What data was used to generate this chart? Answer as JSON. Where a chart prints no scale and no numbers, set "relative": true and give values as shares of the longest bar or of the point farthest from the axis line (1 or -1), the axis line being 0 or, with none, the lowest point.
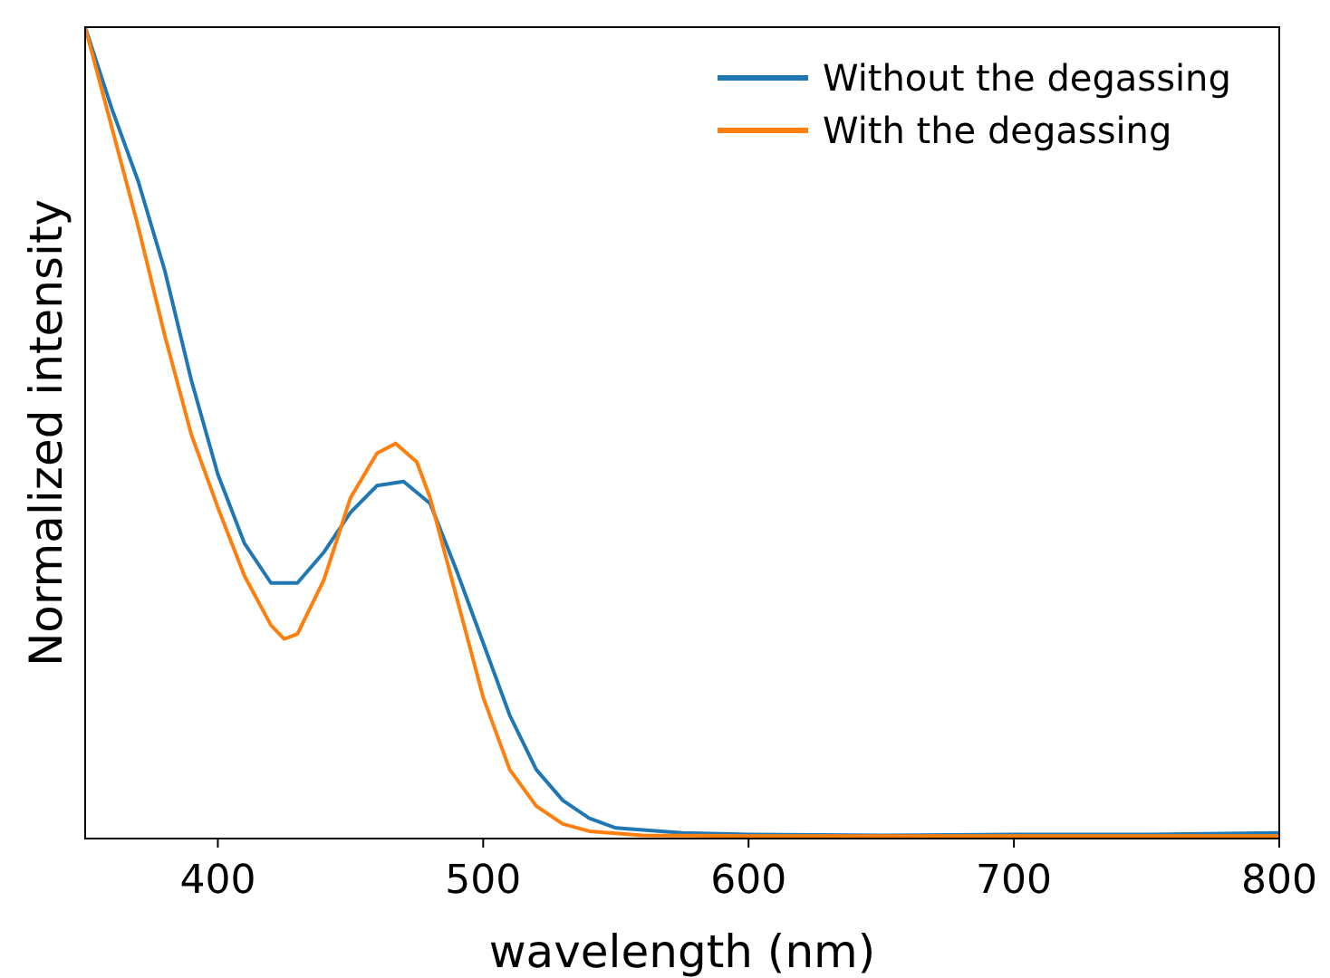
{
  "chart_data": {
    "type": "line",
    "xlabel": "wavelength (nm)",
    "ylabel": "Normalized intensity",
    "relative": true,
    "xlim": [
      350,
      800
    ],
    "xticks": [
      400,
      500,
      600,
      700,
      800
    ],
    "tick_labels": "x",
    "legend": "top right",
    "grid": false,
    "series": [
      {
        "name": "Without the degassing",
        "color": "#1f77b4",
        "x": [
          350,
          360,
          370,
          380,
          390,
          400,
          410,
          420,
          430,
          440,
          450,
          460,
          470,
          480,
          490,
          500,
          510,
          520,
          530,
          540,
          550,
          575,
          600,
          650,
          700,
          750,
          800
        ],
        "values": [
          1.0,
          0.9,
          0.81,
          0.7,
          0.565,
          0.449,
          0.364,
          0.315,
          0.315,
          0.353,
          0.402,
          0.435,
          0.44,
          0.413,
          0.33,
          0.241,
          0.152,
          0.085,
          0.047,
          0.025,
          0.013,
          0.007,
          0.005,
          0.004,
          0.005,
          0.005,
          0.007
        ]
      },
      {
        "name": "With the degassing",
        "color": "#ff7f0e",
        "x": [
          350,
          360,
          370,
          380,
          390,
          400,
          410,
          420,
          425,
          430,
          440,
          450,
          460,
          467,
          475,
          480,
          490,
          500,
          510,
          520,
          530,
          540,
          560,
          600,
          700,
          800
        ],
        "values": [
          1.0,
          0.877,
          0.754,
          0.62,
          0.498,
          0.408,
          0.324,
          0.263,
          0.246,
          0.252,
          0.319,
          0.42,
          0.475,
          0.487,
          0.464,
          0.42,
          0.297,
          0.174,
          0.085,
          0.04,
          0.018,
          0.009,
          0.004,
          0.003,
          0.003,
          0.003
        ]
      }
    ]
  }
}
